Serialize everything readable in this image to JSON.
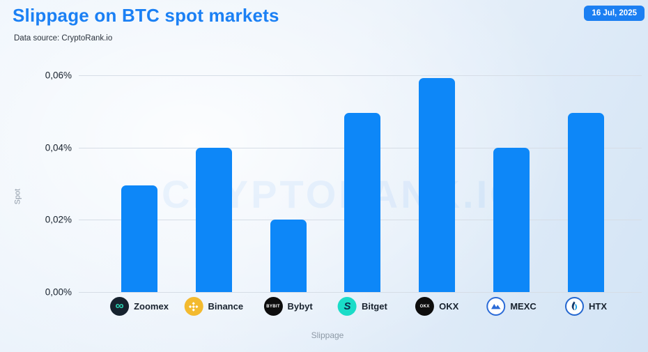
{
  "header": {
    "title": "Slippage on BTC spot markets",
    "subtitle": "Data source: CryptoRank.io",
    "date_badge": "16 Jul, 2025"
  },
  "watermark": "CRYPTORANK.IO",
  "colors": {
    "title_blue": "#1b80f4",
    "badge_bg": "#1b7ff2",
    "bar_blue": "#0d87f8",
    "gridline": "#d6dde6",
    "tick_text": "#16202c",
    "axis_title_text": "#8d99a6"
  },
  "chart_data": {
    "type": "bar",
    "title": "Slippage on BTC spot markets",
    "xlabel": "Slippage",
    "ylabel": "Spot",
    "unit": "%",
    "grid": true,
    "ylim": [
      0,
      0.065
    ],
    "categories": [
      "Zoomex",
      "Binance",
      "Bybyt",
      "Bitget",
      "OKX",
      "MEXC",
      "HTX"
    ],
    "values": [
      0.0295,
      0.04,
      0.02,
      0.0495,
      0.0593,
      0.04,
      0.0495
    ],
    "yticks": [
      {
        "value": 0.06,
        "label": "0,06%"
      },
      {
        "value": 0.04,
        "label": "0,04%"
      },
      {
        "value": 0.02,
        "label": "0,02%"
      },
      {
        "value": 0.0,
        "label": "0,00%"
      }
    ],
    "legend_icons": [
      {
        "name": "zoomex-icon",
        "kind": "infinity",
        "bg": "#16222e",
        "fg": "#2bd6b4"
      },
      {
        "name": "binance-icon",
        "kind": "binance-diamonds",
        "bg": "#f3ba2f",
        "fg": "#ffffff"
      },
      {
        "name": "bybit-icon",
        "kind": "text",
        "text": "BYBIT",
        "bg": "#0d0d0d",
        "fg": "#ffffff"
      },
      {
        "name": "bitget-icon",
        "kind": "s-mark",
        "bg": "#1adcc8",
        "fg": "#0b2b4b"
      },
      {
        "name": "okx-icon",
        "kind": "text",
        "text": "OKX",
        "bg": "#0d0d0d",
        "fg": "#ffffff"
      },
      {
        "name": "mexc-icon",
        "kind": "mountain",
        "bg": "#ffffff",
        "fg": "#2b6bd7",
        "border": "#2b6bd7"
      },
      {
        "name": "htx-icon",
        "kind": "flame",
        "bg": "#ffffff",
        "fg": "#189fe8",
        "fg2": "#123a6b",
        "border": "#2467d0"
      }
    ]
  }
}
